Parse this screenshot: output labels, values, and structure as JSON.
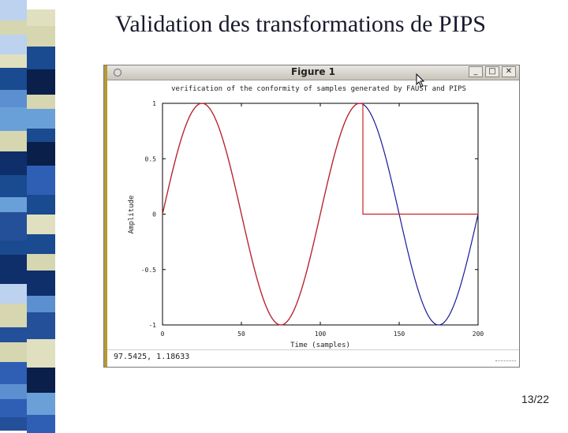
{
  "slide": {
    "title": "Validation des transformations de PIPS",
    "page_number": "13/22"
  },
  "window": {
    "title": "Figure 1",
    "buttons": {
      "minimize": "_",
      "maximize": "□",
      "close": "✕"
    },
    "status_coords": "97.5425,  1.18633"
  },
  "colors": {
    "red_series": "#cc2222",
    "blue_series": "#1a1a99"
  },
  "icons": [
    "window-menu-icon",
    "minimize-icon",
    "maximize-icon",
    "close-icon",
    "mouse-cursor-icon"
  ],
  "chart_data": {
    "type": "line",
    "title": "verification of the conformity of samples generated by FAUST and PIPS",
    "xlabel": "Time (samples)",
    "ylabel": "Amplitude",
    "xlim": [
      0,
      200
    ],
    "ylim": [
      -1,
      1
    ],
    "xticks": [
      "0",
      "50",
      "100",
      "150",
      "200"
    ],
    "yticks": [
      "1",
      "0.5",
      "0",
      "-0.5",
      "-1"
    ],
    "grid": false,
    "series": [
      {
        "color": "#1a1a99",
        "period": 100,
        "x_range": [
          0,
          200
        ],
        "x": [
          0,
          25,
          50,
          75,
          100,
          125,
          150,
          175,
          200
        ],
        "y": [
          0,
          1,
          0,
          -1,
          0,
          1,
          0,
          -1,
          0
        ]
      },
      {
        "color": "#cc2222",
        "period": 100,
        "x": [
          0,
          25,
          50,
          75,
          100,
          125,
          127,
          200
        ],
        "y": [
          0,
          1,
          0,
          -1,
          0,
          1,
          0,
          0
        ]
      }
    ]
  }
}
